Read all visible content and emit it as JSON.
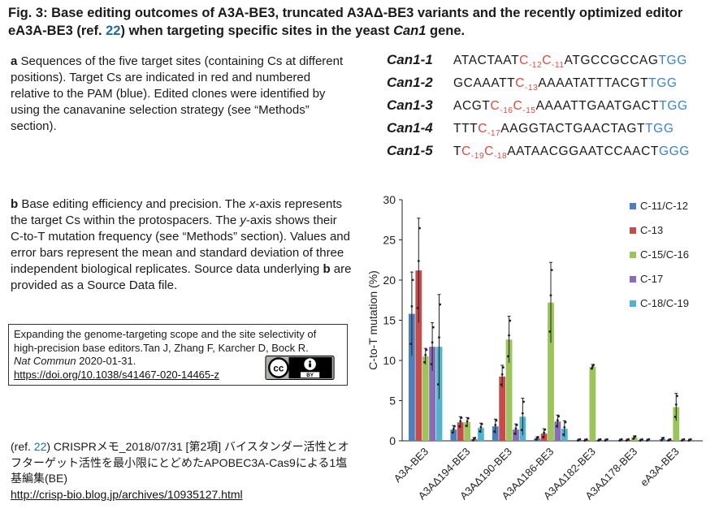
{
  "title": {
    "part1": "Fig. 3: Base editing outcomes of A3A-BE3, truncated A3AΔ-BE3 variants and the recently optimized editor eA3A-BE3 (ref. ",
    "ref": "22",
    "part2": ") when targeting specific sites in the yeast ",
    "gene": "Can1",
    "part3": " gene."
  },
  "panel_a": {
    "letter": "a",
    "text": " Sequences of the five target sites (containing Cs at different positions). Target Cs are indicated in red and numbered relative to the PAM (blue). Edited clones were identified by using the canavanine selection strategy (see “Methods” section)."
  },
  "panel_b": {
    "letter_b": "b",
    "t1": " Base editing efficiency and precision. The ",
    "x": "x",
    "t2": "-axis represents the target Cs within the protospacers. The ",
    "y": "y",
    "t3": "-axis shows their C-to-T mutation frequency (see “Methods” section). Values and error bars represent the mean and standard deviation of three independent biological replicates. Source data underlying ",
    "b2": "b",
    "t4": " are provided as a Source Data file."
  },
  "citation": {
    "line1": "Expanding the genome-targeting scope and the site selectivity of high-precision base editors.Tan J, Zhang F, Karcher D, Bock R.",
    "journal": "Nat Commun",
    "date": " 2020-01-31.",
    "doi": "https://doi.org/10.1038/s41467-020-14465-z",
    "license_cc": "cc",
    "license_by": "BY"
  },
  "ref_note": {
    "open": "(ref. ",
    "ref": "22",
    "text": ") CRISPRメモ_2018/07/31 [第2項] バイスタンダー活性とオフターゲット活性を最小限にとどめたAPOBEC3A-Cas9による1塩基編集(BE)",
    "url": "http://crisp-bio.blog.jp/archives/10935127.html"
  },
  "sequences": [
    {
      "name": "Can1-1",
      "segments": [
        {
          "t": "ATACTAAT",
          "c": "k"
        },
        {
          "t": "C",
          "c": "r",
          "sub": "-12"
        },
        {
          "t": "C",
          "c": "r",
          "sub": "-11"
        },
        {
          "t": "ATGCCGCCAG",
          "c": "k"
        },
        {
          "t": "TGG",
          "c": "b"
        }
      ]
    },
    {
      "name": "Can1-2",
      "segments": [
        {
          "t": "GCAAATT",
          "c": "k"
        },
        {
          "t": "C",
          "c": "r",
          "sub": "-13"
        },
        {
          "t": "AAAATATTTACGT",
          "c": "k"
        },
        {
          "t": "TGG",
          "c": "b"
        }
      ]
    },
    {
      "name": "Can1-3",
      "segments": [
        {
          "t": "ACGT",
          "c": "k"
        },
        {
          "t": "C",
          "c": "r",
          "sub": "-16"
        },
        {
          "t": "C",
          "c": "r",
          "sub": "-15"
        },
        {
          "t": "AAAATTGAATGACT",
          "c": "k"
        },
        {
          "t": "TGG",
          "c": "b"
        }
      ]
    },
    {
      "name": "Can1-4",
      "segments": [
        {
          "t": "TTT",
          "c": "k"
        },
        {
          "t": "C",
          "c": "r",
          "sub": "-17"
        },
        {
          "t": "AAGGTACTGAACTAGT",
          "c": "k"
        },
        {
          "t": "TGG",
          "c": "b"
        }
      ]
    },
    {
      "name": "Can1-5",
      "segments": [
        {
          "t": "T",
          "c": "k"
        },
        {
          "t": "C",
          "c": "r",
          "sub": "-19"
        },
        {
          "t": "C",
          "c": "r",
          "sub": "-18"
        },
        {
          "t": "AATAACGGAATCCAACT",
          "c": "k"
        },
        {
          "t": "GGG",
          "c": "b"
        }
      ]
    }
  ],
  "colors": {
    "red": "#e0493b",
    "blue": "#3b84c7",
    "text": "#1a1a1a"
  },
  "chart_data": {
    "type": "bar",
    "ylabel": "C-to-T mutation (%)",
    "xlabel": "",
    "ylim": [
      0,
      30
    ],
    "yticks": [
      0,
      5,
      10,
      15,
      20,
      25,
      30
    ],
    "categories": [
      "A3A-BE3",
      "A3AΔ194-BE3",
      "A3AΔ190-BE3",
      "A3AΔ186-BE3",
      "A3AΔ182-BE3",
      "A3AΔ178-BE3",
      "eA3A-BE3"
    ],
    "legend_position": "top-right",
    "series": [
      {
        "name": "C-11/C-12",
        "color": "#4c7fc0",
        "values": [
          15.8,
          1.4,
          1.8,
          0.3,
          0.1,
          0.1,
          0.2
        ],
        "err": [
          5.2,
          0.5,
          0.9,
          0.2,
          0.1,
          0.1,
          0.2
        ]
      },
      {
        "name": "C-13",
        "color": "#c84b4b",
        "values": [
          21.2,
          2.3,
          8.0,
          0.9,
          0.1,
          0.1,
          0.1
        ],
        "err": [
          6.5,
          0.7,
          1.4,
          0.6,
          0.1,
          0.1,
          0.1
        ]
      },
      {
        "name": "C-15/C-16",
        "color": "#9bc45a",
        "values": [
          10.5,
          2.3,
          12.6,
          17.2,
          9.2,
          0.4,
          4.2
        ],
        "err": [
          1.0,
          0.6,
          2.9,
          5.0,
          0.3,
          0.2,
          1.7
        ]
      },
      {
        "name": "C-17",
        "color": "#8a6bb5",
        "values": [
          11.7,
          0.2,
          1.4,
          2.4,
          0.1,
          0.1,
          0.1
        ],
        "err": [
          3.0,
          0.2,
          0.7,
          0.8,
          0.1,
          0.1,
          0.1
        ]
      },
      {
        "name": "C-18/C-19",
        "color": "#52b4cc",
        "values": [
          11.7,
          1.6,
          3.0,
          1.5,
          0.1,
          0.1,
          0.1
        ],
        "err": [
          6.5,
          0.6,
          2.3,
          1.0,
          0.1,
          0.1,
          0.1
        ]
      }
    ]
  }
}
